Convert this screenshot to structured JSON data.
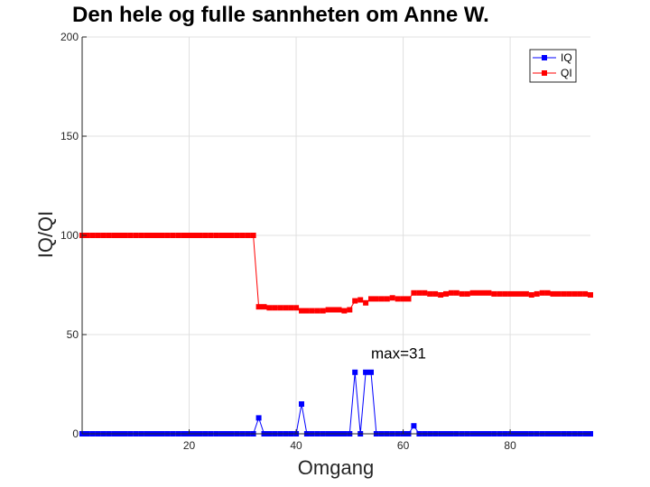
{
  "chart_data": {
    "type": "line",
    "title": "Den hele og fulle sannheten om Anne W.",
    "xlabel": "Omgang",
    "ylabel": "IQ/QI",
    "xlim": [
      0,
      95
    ],
    "ylim": [
      0,
      200
    ],
    "xticks": [
      20,
      40,
      60,
      80
    ],
    "yticks": [
      0,
      50,
      100,
      150,
      200
    ],
    "xtick_labels": [
      "20",
      "40",
      "60",
      "80"
    ],
    "ytick_labels": [
      "0",
      "50",
      "100",
      "150",
      "200"
    ],
    "grid": true,
    "legend_position": "top-right",
    "annotation": {
      "text": "max=31",
      "x": 54,
      "y": 38
    },
    "series": [
      {
        "name": "IQ",
        "color": "#0000ff",
        "marker": "square",
        "x": [
          0,
          1,
          2,
          3,
          4,
          5,
          6,
          7,
          8,
          9,
          10,
          11,
          12,
          13,
          14,
          15,
          16,
          17,
          18,
          19,
          20,
          21,
          22,
          23,
          24,
          25,
          26,
          27,
          28,
          29,
          30,
          31,
          32,
          33,
          34,
          35,
          36,
          37,
          38,
          39,
          40,
          41,
          42,
          43,
          44,
          45,
          46,
          47,
          48,
          49,
          50,
          51,
          52,
          53,
          54,
          55,
          56,
          57,
          58,
          59,
          60,
          61,
          62,
          63,
          64,
          65,
          66,
          67,
          68,
          69,
          70,
          71,
          72,
          73,
          74,
          75,
          76,
          77,
          78,
          79,
          80,
          81,
          82,
          83,
          84,
          85,
          86,
          87,
          88,
          89,
          90,
          91,
          92,
          93,
          94,
          95
        ],
        "values": [
          0,
          0,
          0,
          0,
          0,
          0,
          0,
          0,
          0,
          0,
          0,
          0,
          0,
          0,
          0,
          0,
          0,
          0,
          0,
          0,
          0,
          0,
          0,
          0,
          0,
          0,
          0,
          0,
          0,
          0,
          0,
          0,
          0,
          8,
          0,
          0,
          0,
          0,
          0,
          0,
          0,
          15,
          0,
          0,
          0,
          0,
          0,
          0,
          0,
          0,
          0,
          31,
          0,
          31,
          31,
          0,
          0,
          0,
          0,
          0,
          0,
          0,
          4,
          0,
          0,
          0,
          0,
          0,
          0,
          0,
          0,
          0,
          0,
          0,
          0,
          0,
          0,
          0,
          0,
          0,
          0,
          0,
          0,
          0,
          0,
          0,
          0,
          0,
          0,
          0,
          0,
          0,
          0,
          0,
          0,
          0
        ]
      },
      {
        "name": "QI",
        "color": "#ff0000",
        "marker": "square",
        "x": [
          0,
          1,
          2,
          3,
          4,
          5,
          6,
          7,
          8,
          9,
          10,
          11,
          12,
          13,
          14,
          15,
          16,
          17,
          18,
          19,
          20,
          21,
          22,
          23,
          24,
          25,
          26,
          27,
          28,
          29,
          30,
          31,
          32,
          33,
          34,
          35,
          36,
          37,
          38,
          39,
          40,
          41,
          42,
          43,
          44,
          45,
          46,
          47,
          48,
          49,
          50,
          51,
          52,
          53,
          54,
          55,
          56,
          57,
          58,
          59,
          60,
          61,
          62,
          63,
          64,
          65,
          66,
          67,
          68,
          69,
          70,
          71,
          72,
          73,
          74,
          75,
          76,
          77,
          78,
          79,
          80,
          81,
          82,
          83,
          84,
          85,
          86,
          87,
          88,
          89,
          90,
          91,
          92,
          93,
          94,
          95
        ],
        "values": [
          100,
          100,
          100,
          100,
          100,
          100,
          100,
          100,
          100,
          100,
          100,
          100,
          100,
          100,
          100,
          100,
          100,
          100,
          100,
          100,
          100,
          100,
          100,
          100,
          100,
          100,
          100,
          100,
          100,
          100,
          100,
          100,
          100,
          64,
          64,
          63.5,
          63.5,
          63.5,
          63.5,
          63.5,
          63.5,
          62,
          62,
          62,
          62,
          62,
          62.5,
          62.5,
          62.5,
          62,
          62.5,
          67,
          67.5,
          66,
          68,
          68,
          68,
          68,
          68.5,
          68,
          68,
          68,
          71,
          71,
          71,
          70.5,
          70.5,
          70,
          70.5,
          71,
          71,
          70.5,
          70.5,
          71,
          71,
          71,
          71,
          70.5,
          70.5,
          70.5,
          70.5,
          70.5,
          70.5,
          70.5,
          70,
          70.5,
          71,
          71,
          70.5,
          70.5,
          70.5,
          70.5,
          70.5,
          70.5,
          70.5,
          70
        ]
      }
    ]
  }
}
